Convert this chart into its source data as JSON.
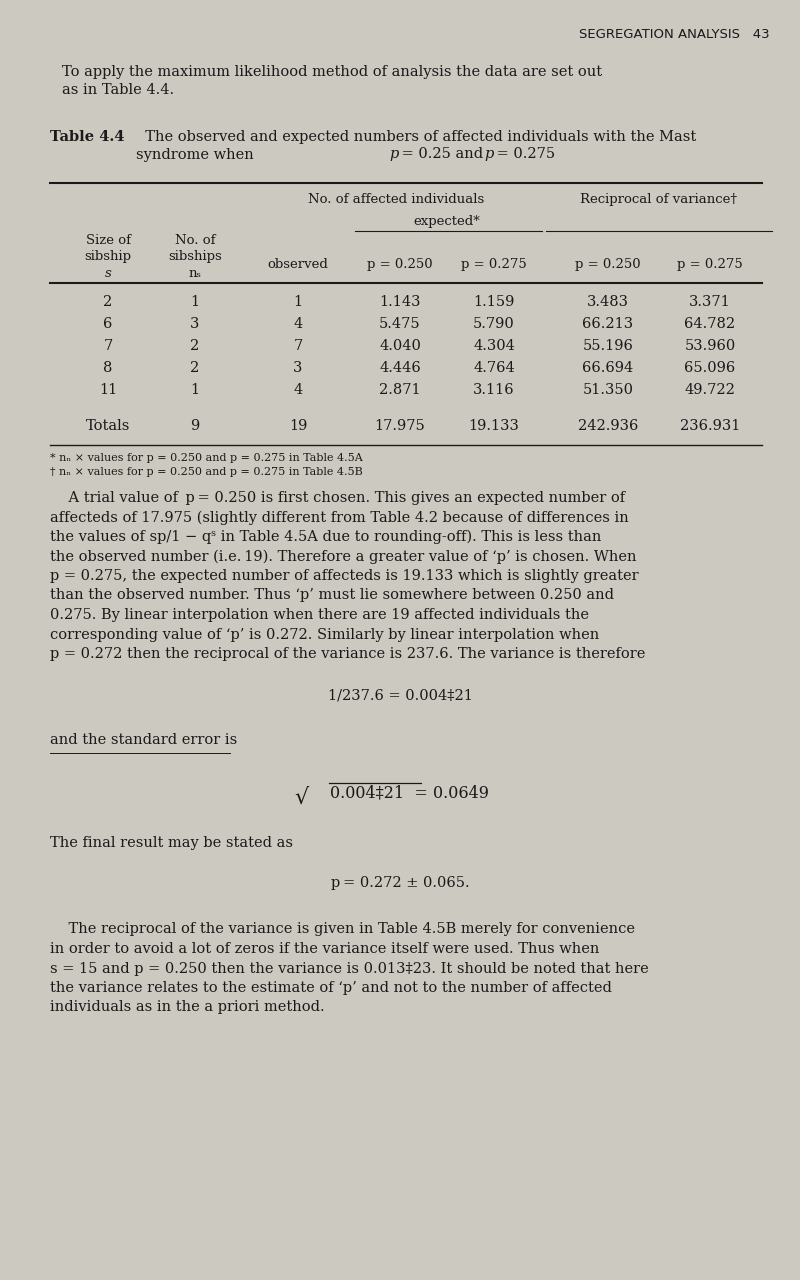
{
  "bg_color": "#ccc9c0",
  "text_color": "#1a1a1a",
  "page_header": "SEGREGATION ANALYSIS   43",
  "table_data": [
    [
      "2",
      "1",
      "1",
      "1.143",
      "1.159",
      "3.483",
      "3.371"
    ],
    [
      "6",
      "3",
      "4",
      "5.475",
      "5.790",
      "66.213",
      "64.782"
    ],
    [
      "7",
      "2",
      "7",
      "4.040",
      "4.304",
      "55.196",
      "53.960"
    ],
    [
      "8",
      "2",
      "3",
      "4.446",
      "4.764",
      "66.694",
      "65.096"
    ],
    [
      "11",
      "1",
      "4",
      "2.871",
      "3.116",
      "51.350",
      "49.722"
    ]
  ],
  "totals_row": [
    "Totals",
    "9",
    "19",
    "17.975",
    "19.133",
    "242.936",
    "236.931"
  ],
  "footnote1": "* nₙ × values for p = 0.250 and p = 0.275 in Table 4.5A",
  "footnote2": "† nₙ × values for p = 0.250 and p = 0.275 in Table 4.5B"
}
